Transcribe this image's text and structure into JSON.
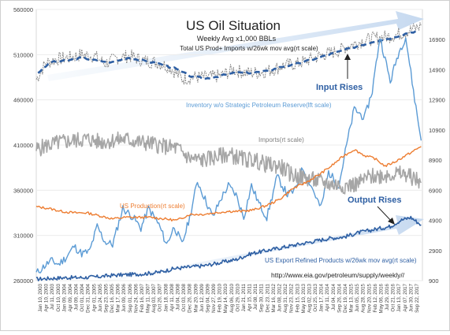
{
  "chart_data": {
    "type": "line",
    "title": "US Oil Situation",
    "subtitle": "Weekly Avg x1,000 BBLs",
    "subtitle2": "Total US Prod+ Imports w/26wk mov avg(rt scale)",
    "url": "http://www.eia.gov/petroleum/supply/weekly//",
    "left_axis": {
      "ylim": [
        260000,
        560000
      ],
      "ticks": [
        260000,
        310000,
        360000,
        410000,
        460000,
        510000,
        560000
      ]
    },
    "right_axis": {
      "ylim": [
        900,
        18900
      ],
      "ticks": [
        900,
        2900,
        4900,
        6900,
        8900,
        10900,
        12900,
        14900,
        16900
      ]
    },
    "x_ticks": [
      "Jan 10, 2003",
      "Apr 10, 2003",
      "Jul 11, 2003",
      "Oct 10, 2003",
      "Jan 09, 2004",
      "Apr 09, 2004",
      "Jul 09, 2004",
      "Oct 01, 2004",
      "Dec 31, 2004",
      "Apr 01, 2005",
      "Jun 24, 2005",
      "Sep 23, 2005",
      "Dec 16, 2005",
      "Mar 17, 2006",
      "Jun 09, 2006",
      "Sep 01, 2006",
      "Nov 24, 2006",
      "Feb 16, 2007",
      "May 11, 2007",
      "Aug 03, 2007",
      "Oct 26, 2007",
      "Jan 18, 2008",
      "Apr 11, 2008",
      "Jul 04, 2008",
      "Oct 03, 2008",
      "Dec 26, 2008",
      "Mar 20, 2009",
      "Jun 12, 2009",
      "Sep 04, 2009",
      "Nov 27, 2009",
      "Feb 19, 2010",
      "May 14, 2010",
      "Aug 06, 2010",
      "Oct 29, 2010",
      "Jan 21, 2011",
      "Apr 15, 2011",
      "Jul 08, 2011",
      "Sep 30, 2011",
      "Dec 23, 2011",
      "Mar 16, 2012",
      "Jun 08, 2012",
      "Aug 31, 2012",
      "Nov 23, 2012",
      "Feb 15, 2013",
      "May 10, 2013",
      "Aug 02, 2013",
      "Oct 25, 2013",
      "Jan 17, 2014",
      "Apr 11, 2014",
      "Jul 04, 2014",
      "Sep 26, 2014",
      "Dec 19, 2014",
      "Mar 13, 2015",
      "Jun 05, 2015",
      "Aug 28, 2015",
      "Nov 20, 2015",
      "Feb 12, 2016",
      "May 06, 2016",
      "Jul 29, 2016",
      "Oct 21, 2016",
      "Jan 13, 2017",
      "Apr 07, 2017",
      "Jun 30, 2017",
      "Sep 22, 2017"
    ],
    "x_range": [
      2003.03,
      2018.05
    ],
    "annotations": {
      "prod_imports_label": "Total US Prod+ Imports w/26wk mov avg(rt scale)",
      "input_rises": "Input Rises",
      "inventory": "Inventory w/o Strategic Petroleum Reserve(lft scale)",
      "imports": "Imports(rt scale)",
      "production": "US Production(rt scale)",
      "output_rises": "Output Rises",
      "exports": "US Export Refined Products w/26wk mov avg(rt scale)"
    },
    "series": [
      {
        "name": "Total US Prod+ Imports",
        "axis": "right",
        "style": "dashed-raw",
        "color": "#888888",
        "points": [
          [
            2003.03,
            14250
          ],
          [
            2003.4,
            15350
          ],
          [
            2003.8,
            15600
          ],
          [
            2004.3,
            15700
          ],
          [
            2004.8,
            15900
          ],
          [
            2005.3,
            15800
          ],
          [
            2005.7,
            15300
          ],
          [
            2006.2,
            15700
          ],
          [
            2006.7,
            15800
          ],
          [
            2007.2,
            15500
          ],
          [
            2007.7,
            15400
          ],
          [
            2008.2,
            15100
          ],
          [
            2008.7,
            14300
          ],
          [
            2009.2,
            14400
          ],
          [
            2009.7,
            14400
          ],
          [
            2010.2,
            14500
          ],
          [
            2010.7,
            14900
          ],
          [
            2011.2,
            14700
          ],
          [
            2011.7,
            14700
          ],
          [
            2012.2,
            14900
          ],
          [
            2012.7,
            15200
          ],
          [
            2013.2,
            15300
          ],
          [
            2013.7,
            15600
          ],
          [
            2014.2,
            15900
          ],
          [
            2014.7,
            16100
          ],
          [
            2015.2,
            16500
          ],
          [
            2015.7,
            16800
          ],
          [
            2016.2,
            17000
          ],
          [
            2016.7,
            17100
          ],
          [
            2017.2,
            17300
          ],
          [
            2017.7,
            17600
          ],
          [
            2018.0,
            17800
          ]
        ]
      },
      {
        "name": "Prod+Imports 26wk avg",
        "axis": "right",
        "style": "dashed-avg",
        "color": "#2e5fa3",
        "points": [
          [
            2003.1,
            14700
          ],
          [
            2003.6,
            15400
          ],
          [
            2004.2,
            15500
          ],
          [
            2004.8,
            15700
          ],
          [
            2005.4,
            15500
          ],
          [
            2006.0,
            15400
          ],
          [
            2006.6,
            15700
          ],
          [
            2007.2,
            15500
          ],
          [
            2007.8,
            15300
          ],
          [
            2008.4,
            15000
          ],
          [
            2009.0,
            14500
          ],
          [
            2009.6,
            14300
          ],
          [
            2010.2,
            14500
          ],
          [
            2010.8,
            14700
          ],
          [
            2011.4,
            14700
          ],
          [
            2012.0,
            14800
          ],
          [
            2012.6,
            15100
          ],
          [
            2013.2,
            15300
          ],
          [
            2013.8,
            15600
          ],
          [
            2014.4,
            15900
          ],
          [
            2015.0,
            16200
          ],
          [
            2015.6,
            16500
          ],
          [
            2016.2,
            16800
          ],
          [
            2016.8,
            17000
          ],
          [
            2017.4,
            17300
          ],
          [
            2017.9,
            17500
          ]
        ]
      },
      {
        "name": "Inventory w/o Strategic Petroleum Reserve",
        "axis": "left",
        "style": "line",
        "color": "#5b9bd5",
        "points": [
          [
            2003.03,
            268000
          ],
          [
            2003.3,
            275000
          ],
          [
            2003.6,
            282000
          ],
          [
            2003.9,
            278000
          ],
          [
            2004.2,
            286000
          ],
          [
            2004.5,
            298000
          ],
          [
            2004.8,
            290000
          ],
          [
            2005.1,
            292000
          ],
          [
            2005.4,
            320000
          ],
          [
            2005.7,
            303000
          ],
          [
            2006.0,
            300000
          ],
          [
            2006.4,
            340000
          ],
          [
            2006.8,
            330000
          ],
          [
            2007.1,
            318000
          ],
          [
            2007.4,
            340000
          ],
          [
            2007.8,
            322000
          ],
          [
            2008.1,
            300000
          ],
          [
            2008.4,
            320000
          ],
          [
            2008.7,
            300000
          ],
          [
            2009.0,
            330000
          ],
          [
            2009.3,
            370000
          ],
          [
            2009.6,
            350000
          ],
          [
            2009.9,
            330000
          ],
          [
            2010.2,
            350000
          ],
          [
            2010.5,
            365000
          ],
          [
            2010.8,
            355000
          ],
          [
            2011.1,
            330000
          ],
          [
            2011.4,
            365000
          ],
          [
            2011.7,
            345000
          ],
          [
            2012.0,
            330000
          ],
          [
            2012.4,
            375000
          ],
          [
            2012.8,
            355000
          ],
          [
            2013.1,
            360000
          ],
          [
            2013.4,
            385000
          ],
          [
            2013.8,
            360000
          ],
          [
            2014.1,
            340000
          ],
          [
            2014.4,
            380000
          ],
          [
            2014.8,
            365000
          ],
          [
            2015.1,
            410000
          ],
          [
            2015.4,
            450000
          ],
          [
            2015.8,
            440000
          ],
          [
            2016.1,
            470000
          ],
          [
            2016.4,
            530000
          ],
          [
            2016.8,
            480000
          ],
          [
            2017.1,
            510000
          ],
          [
            2017.4,
            530000
          ],
          [
            2017.7,
            470000
          ],
          [
            2018.0,
            415000
          ]
        ]
      },
      {
        "name": "Imports",
        "axis": "right",
        "style": "line",
        "color": "#a6a6a6",
        "points": [
          [
            2003.03,
            9600
          ],
          [
            2003.5,
            9900
          ],
          [
            2004.0,
            10100
          ],
          [
            2004.5,
            10200
          ],
          [
            2005.0,
            10300
          ],
          [
            2005.5,
            10100
          ],
          [
            2006.0,
            10200
          ],
          [
            2006.5,
            10300
          ],
          [
            2007.0,
            10100
          ],
          [
            2007.5,
            10000
          ],
          [
            2008.0,
            9800
          ],
          [
            2008.5,
            9700
          ],
          [
            2009.0,
            9000
          ],
          [
            2009.5,
            8900
          ],
          [
            2010.0,
            9100
          ],
          [
            2010.5,
            9300
          ],
          [
            2011.0,
            9000
          ],
          [
            2011.5,
            8900
          ],
          [
            2012.0,
            8600
          ],
          [
            2012.5,
            8500
          ],
          [
            2013.0,
            7900
          ],
          [
            2013.5,
            7700
          ],
          [
            2014.0,
            7500
          ],
          [
            2014.5,
            7300
          ],
          [
            2015.0,
            7200
          ],
          [
            2015.5,
            7300
          ],
          [
            2016.0,
            7800
          ],
          [
            2016.5,
            7900
          ],
          [
            2017.0,
            8000
          ],
          [
            2017.5,
            7900
          ],
          [
            2018.0,
            7400
          ]
        ]
      },
      {
        "name": "US Production",
        "axis": "right",
        "style": "line",
        "color": "#ed7d31",
        "points": [
          [
            2003.03,
            5800
          ],
          [
            2003.5,
            5700
          ],
          [
            2004.0,
            5500
          ],
          [
            2004.5,
            5400
          ],
          [
            2005.0,
            5400
          ],
          [
            2005.5,
            5200
          ],
          [
            2006.0,
            5000
          ],
          [
            2006.5,
            5100
          ],
          [
            2007.0,
            5100
          ],
          [
            2007.5,
            5100
          ],
          [
            2008.0,
            5000
          ],
          [
            2008.5,
            4900
          ],
          [
            2009.0,
            5300
          ],
          [
            2009.5,
            5300
          ],
          [
            2010.0,
            5400
          ],
          [
            2010.5,
            5500
          ],
          [
            2011.0,
            5500
          ],
          [
            2011.5,
            5600
          ],
          [
            2012.0,
            5900
          ],
          [
            2012.5,
            6300
          ],
          [
            2013.0,
            7000
          ],
          [
            2013.5,
            7400
          ],
          [
            2014.0,
            7900
          ],
          [
            2014.5,
            8500
          ],
          [
            2015.0,
            9200
          ],
          [
            2015.4,
            9600
          ],
          [
            2015.8,
            9200
          ],
          [
            2016.2,
            9000
          ],
          [
            2016.6,
            8500
          ],
          [
            2017.0,
            8800
          ],
          [
            2017.5,
            9300
          ],
          [
            2018.0,
            9800
          ]
        ]
      },
      {
        "name": "US Export Refined Products",
        "axis": "right",
        "style": "line",
        "color": "#2e5fa3",
        "points": [
          [
            2003.03,
            1000
          ],
          [
            2003.6,
            1050
          ],
          [
            2004.2,
            1100
          ],
          [
            2004.8,
            1100
          ],
          [
            2005.4,
            1150
          ],
          [
            2006.0,
            1250
          ],
          [
            2006.6,
            1300
          ],
          [
            2007.2,
            1350
          ],
          [
            2007.8,
            1450
          ],
          [
            2008.4,
            1700
          ],
          [
            2009.0,
            1800
          ],
          [
            2009.6,
            1900
          ],
          [
            2010.2,
            2100
          ],
          [
            2010.8,
            2300
          ],
          [
            2011.4,
            2700
          ],
          [
            2012.0,
            2900
          ],
          [
            2012.6,
            3100
          ],
          [
            2013.2,
            3300
          ],
          [
            2013.8,
            3500
          ],
          [
            2014.4,
            3700
          ],
          [
            2015.0,
            3800
          ],
          [
            2015.6,
            4100
          ],
          [
            2016.2,
            4300
          ],
          [
            2016.8,
            4500
          ],
          [
            2017.2,
            4900
          ],
          [
            2017.6,
            5100
          ],
          [
            2018.0,
            4600
          ]
        ]
      }
    ]
  }
}
